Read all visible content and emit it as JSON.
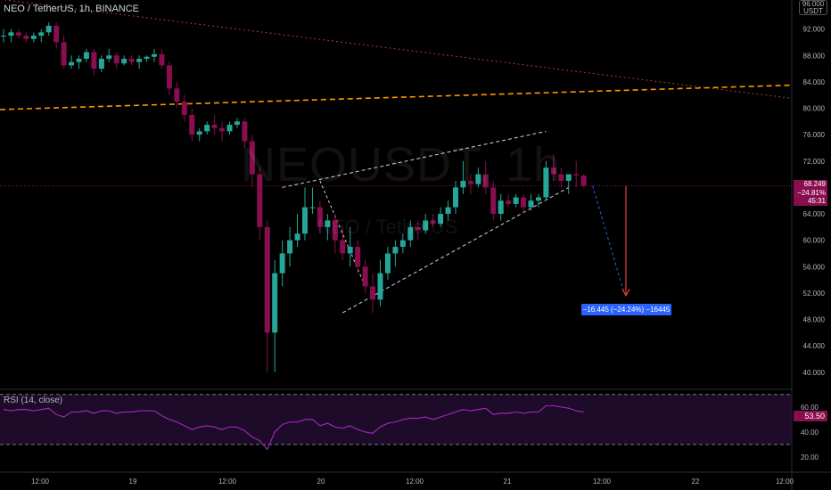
{
  "header": {
    "title": "NEO / TetherUS, 1h, BINANCE"
  },
  "watermark": {
    "symbol": "NEOUSDT, 1h",
    "name": "NEO / TetherUS"
  },
  "currency": {
    "top": "96.000",
    "unit": "USDT"
  },
  "price_label": {
    "price": "68.249",
    "change": "−24.81%",
    "countdown": "45:31"
  },
  "projection_label": "−16.445 (−24.24%) −16445",
  "rsi": {
    "title": "RSI (14, close)",
    "value": "53.50"
  },
  "colors": {
    "up": "#26a69a",
    "down": "#880e4f",
    "bg": "#000000",
    "rsi": "#9c27b0",
    "fib": "#ff9800",
    "projection": "#2962ff"
  },
  "chart_data": [
    {
      "type": "candlestick",
      "title": "NEO / TetherUS, 1h, BINANCE",
      "y_ticks": [
        "92.000",
        "88.000",
        "84.000",
        "80.000",
        "76.000",
        "72.000",
        "68.000",
        "64.000",
        "60.000",
        "56.000",
        "52.000",
        "48.000",
        "44.000",
        "40.000"
      ],
      "x_ticks": [
        "12:00",
        "19",
        "12:00",
        "20",
        "12:00",
        "21",
        "12:00",
        "22",
        "12:00"
      ],
      "ylim": [
        37,
        96
      ],
      "ohlc": [
        [
          91,
          92,
          90,
          91
        ],
        [
          91,
          92,
          90,
          91.5
        ],
        [
          91.5,
          92,
          90.5,
          91
        ],
        [
          91,
          91.5,
          90,
          90.5
        ],
        [
          90.5,
          91.5,
          90,
          91
        ],
        [
          91,
          92,
          90,
          91.5
        ],
        [
          91.5,
          93,
          91,
          92.5
        ],
        [
          92.5,
          93,
          89,
          90
        ],
        [
          90,
          91,
          86,
          86.5
        ],
        [
          86.5,
          88,
          86,
          87
        ],
        [
          87,
          88,
          86,
          87.5
        ],
        [
          87.5,
          89,
          87,
          88.5
        ],
        [
          88.5,
          89,
          85,
          86
        ],
        [
          86,
          88,
          85.5,
          87.5
        ],
        [
          87.5,
          89,
          87,
          88
        ],
        [
          88,
          88.5,
          86,
          86.8
        ],
        [
          86.8,
          88,
          86.5,
          87.5
        ],
        [
          87.5,
          88,
          86.5,
          87
        ],
        [
          87,
          88,
          86,
          87.5
        ],
        [
          87.5,
          88,
          87,
          87.8
        ],
        [
          87.8,
          89,
          87,
          88.2
        ],
        [
          88.2,
          89,
          86,
          86.5
        ],
        [
          86.5,
          87,
          82,
          83
        ],
        [
          83,
          84,
          80,
          81
        ],
        [
          81,
          82,
          78,
          79
        ],
        [
          79,
          80,
          75,
          76
        ],
        [
          76,
          77,
          75,
          76.5
        ],
        [
          76.5,
          78,
          76,
          77.5
        ],
        [
          77.5,
          79,
          76,
          77
        ],
        [
          77,
          78,
          75,
          76.5
        ],
        [
          76.5,
          78,
          76,
          77.5
        ],
        [
          77.5,
          78.5,
          77,
          78
        ],
        [
          78,
          78.5,
          74,
          75
        ],
        [
          75,
          76,
          68,
          70
        ],
        [
          70,
          71,
          60,
          62
        ],
        [
          62,
          63,
          40,
          46
        ],
        [
          46,
          57,
          40,
          55
        ],
        [
          55,
          60,
          53,
          58
        ],
        [
          58,
          62,
          56,
          60
        ],
        [
          60,
          64,
          59,
          61
        ],
        [
          61,
          68,
          60,
          65
        ],
        [
          65,
          68,
          64,
          65
        ],
        [
          65,
          66,
          61,
          62
        ],
        [
          62,
          64,
          60,
          63
        ],
        [
          63,
          64,
          58,
          60
        ],
        [
          60,
          62,
          57,
          58
        ],
        [
          58,
          62,
          56,
          59
        ],
        [
          59,
          60,
          55,
          56
        ],
        [
          56,
          57,
          52,
          53
        ],
        [
          53,
          55,
          49,
          51
        ],
        [
          51,
          57,
          50,
          55
        ],
        [
          55,
          59,
          54,
          58
        ],
        [
          58,
          60,
          56,
          59
        ],
        [
          59,
          61,
          58,
          60
        ],
        [
          60,
          63,
          59,
          62
        ],
        [
          62,
          63,
          60,
          61.5
        ],
        [
          61.5,
          64,
          61,
          63
        ],
        [
          63,
          64,
          62,
          62.5
        ],
        [
          62.5,
          65,
          62,
          64
        ],
        [
          64,
          66,
          63,
          65
        ],
        [
          65,
          69,
          64,
          68
        ],
        [
          68,
          72,
          67,
          69
        ],
        [
          69,
          70,
          67,
          68.5
        ],
        [
          68.5,
          71,
          68,
          70
        ],
        [
          70,
          72,
          67,
          68
        ],
        [
          68,
          69,
          63,
          64
        ],
        [
          64,
          67,
          63,
          66
        ],
        [
          66,
          67,
          65,
          65.5
        ],
        [
          65.5,
          67,
          65,
          66.5
        ],
        [
          66.5,
          67,
          64,
          65
        ],
        [
          65,
          67,
          64.5,
          66
        ],
        [
          66,
          67,
          65,
          66.5
        ],
        [
          66.5,
          72,
          66,
          71
        ],
        [
          71,
          73,
          69,
          70
        ],
        [
          70,
          71,
          68,
          69
        ],
        [
          69,
          70,
          67,
          70
        ],
        [
          70,
          72,
          68,
          69.8
        ],
        [
          69.8,
          70,
          68,
          68.249
        ]
      ],
      "rsi": [
        58,
        57,
        58,
        58,
        57,
        58,
        59,
        54,
        52,
        56,
        56,
        57,
        55,
        57,
        57,
        55,
        56,
        56,
        57,
        57,
        57,
        53,
        50,
        48,
        45,
        42,
        44,
        45,
        44,
        42,
        44,
        44,
        41,
        36,
        33,
        26,
        40,
        46,
        48,
        48,
        50,
        50,
        45,
        47,
        44,
        43,
        45,
        42,
        40,
        39,
        44,
        47,
        48,
        50,
        51,
        51,
        52,
        50,
        52,
        54,
        56,
        58,
        57,
        58,
        59,
        54,
        55,
        55,
        56,
        55,
        56,
        56,
        61,
        61,
        60,
        59,
        57,
        56
      ],
      "rsi_ylim": [
        10,
        72
      ],
      "rsi_ticks": [
        "60.00",
        "40.00",
        "20.00"
      ],
      "rsi_bands": [
        70,
        30
      ]
    }
  ]
}
